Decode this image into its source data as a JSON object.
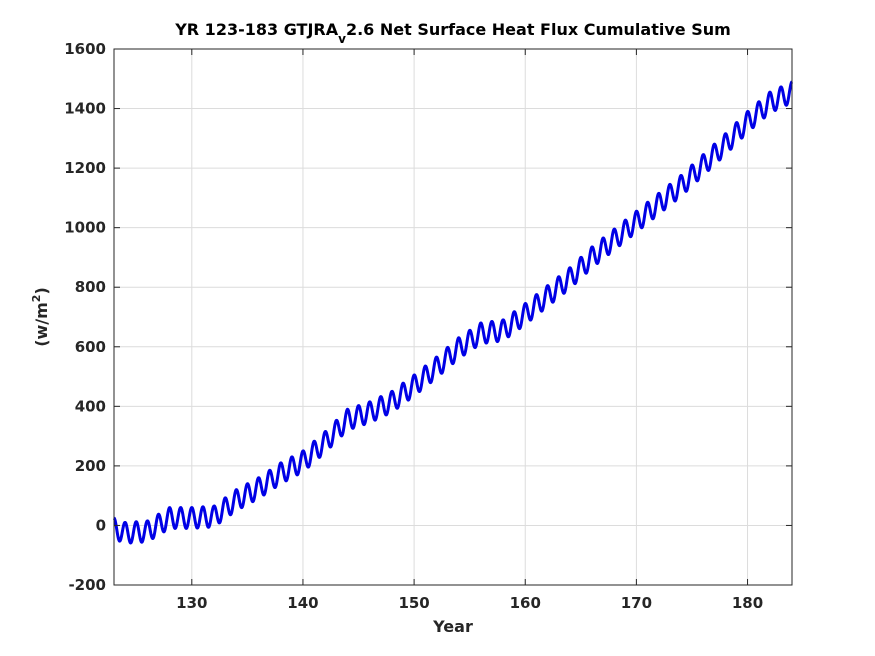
{
  "chart_data": {
    "type": "line",
    "title": {
      "prefix": "YR 123-183 GTJRA",
      "subscript": "v",
      "suffix": "2.6 Net Surface Heat Flux  Cumulative Sum"
    },
    "xlabel": "Year",
    "ylabel": {
      "base": "(w/m",
      "superscript": "2",
      "close": ")"
    },
    "xlim": [
      123,
      184
    ],
    "ylim": [
      -200,
      1600
    ],
    "xticks": [
      130,
      140,
      150,
      160,
      170,
      180
    ],
    "yticks": [
      -200,
      0,
      200,
      400,
      600,
      800,
      1000,
      1200,
      1400,
      1600
    ],
    "grid": true,
    "series": [
      {
        "color": "#0000e6",
        "annual_cycle_amplitude": 35,
        "trend_x": [
          123,
          124,
          126,
          128,
          130,
          132,
          134,
          136,
          138,
          140,
          142,
          144,
          146,
          148,
          150,
          152,
          154,
          156,
          158,
          160,
          162,
          164,
          166,
          168,
          170,
          172,
          174,
          176,
          178,
          180,
          182,
          184
        ],
        "trend_y": [
          -10,
          -25,
          -20,
          25,
          25,
          30,
          85,
          125,
          175,
          215,
          280,
          355,
          380,
          415,
          470,
          530,
          595,
          645,
          655,
          710,
          770,
          830,
          900,
          960,
          1020,
          1080,
          1140,
          1210,
          1280,
          1355,
          1420,
          1455
        ]
      }
    ]
  }
}
